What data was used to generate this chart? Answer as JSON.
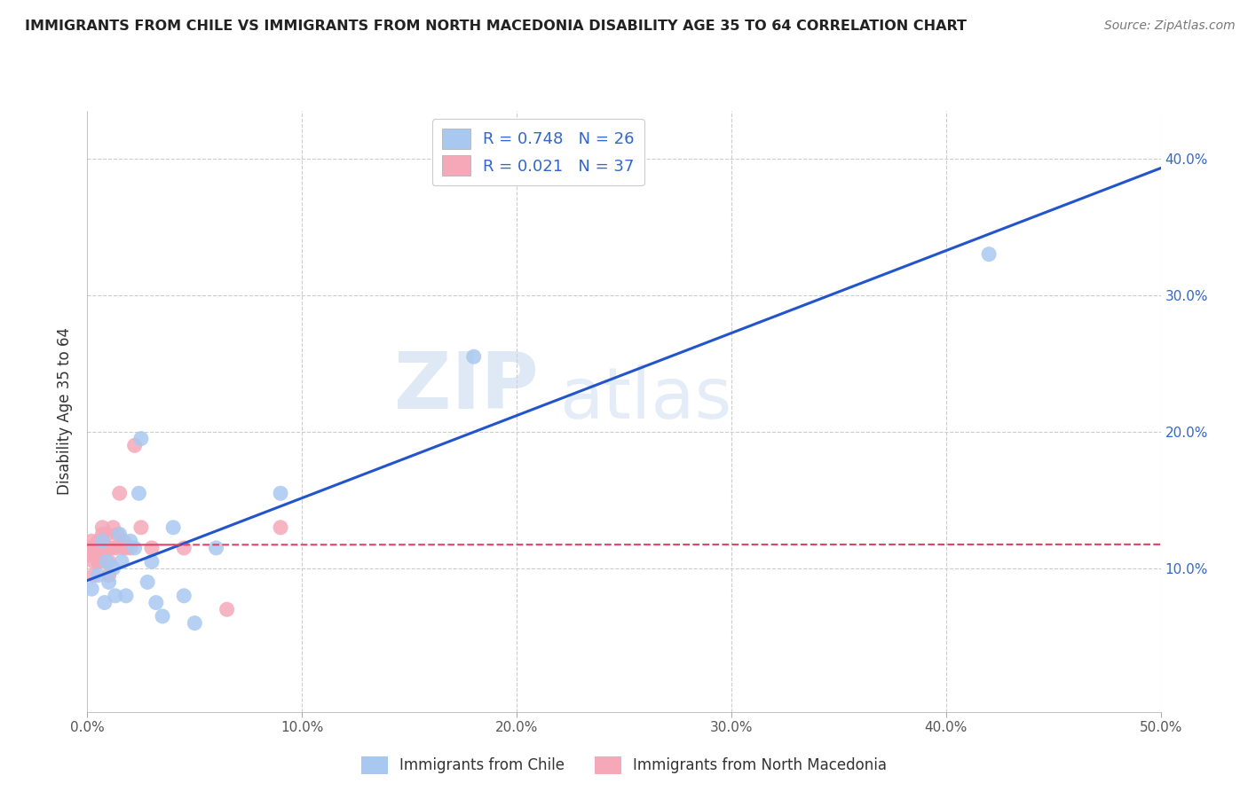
{
  "title": "IMMIGRANTS FROM CHILE VS IMMIGRANTS FROM NORTH MACEDONIA DISABILITY AGE 35 TO 64 CORRELATION CHART",
  "source": "Source: ZipAtlas.com",
  "ylabel": "Disability Age 35 to 64",
  "xlim": [
    0.0,
    0.5
  ],
  "ylim": [
    -0.005,
    0.435
  ],
  "xticks": [
    0.0,
    0.1,
    0.2,
    0.3,
    0.4,
    0.5
  ],
  "yticks": [
    0.0,
    0.1,
    0.2,
    0.3,
    0.4
  ],
  "xtick_labels": [
    "0.0%",
    "10.0%",
    "20.0%",
    "30.0%",
    "40.0%",
    "50.0%"
  ],
  "ytick_labels_right": [
    "",
    "10.0%",
    "20.0%",
    "30.0%",
    "40.0%"
  ],
  "blue_R": 0.748,
  "blue_N": 26,
  "pink_R": 0.021,
  "pink_N": 37,
  "blue_color": "#A8C8F0",
  "pink_color": "#F4A8B8",
  "blue_line_color": "#2255CC",
  "pink_line_color": "#DD4466",
  "watermark_zip": "ZIP",
  "watermark_atlas": "atlas",
  "legend_label_blue": "Immigrants from Chile",
  "legend_label_pink": "Immigrants from North Macedonia",
  "blue_x": [
    0.002,
    0.005,
    0.007,
    0.008,
    0.009,
    0.01,
    0.012,
    0.013,
    0.015,
    0.016,
    0.018,
    0.02,
    0.022,
    0.024,
    0.025,
    0.028,
    0.03,
    0.032,
    0.035,
    0.04,
    0.045,
    0.05,
    0.06,
    0.09,
    0.18,
    0.42
  ],
  "blue_y": [
    0.085,
    0.095,
    0.12,
    0.075,
    0.105,
    0.09,
    0.1,
    0.08,
    0.125,
    0.105,
    0.08,
    0.12,
    0.115,
    0.155,
    0.195,
    0.09,
    0.105,
    0.075,
    0.065,
    0.13,
    0.08,
    0.06,
    0.115,
    0.155,
    0.255,
    0.33
  ],
  "pink_x": [
    0.001,
    0.001,
    0.002,
    0.002,
    0.003,
    0.003,
    0.003,
    0.004,
    0.004,
    0.005,
    0.005,
    0.005,
    0.006,
    0.006,
    0.007,
    0.007,
    0.008,
    0.008,
    0.009,
    0.01,
    0.01,
    0.01,
    0.011,
    0.012,
    0.013,
    0.014,
    0.015,
    0.016,
    0.017,
    0.018,
    0.02,
    0.022,
    0.025,
    0.03,
    0.045,
    0.065,
    0.09
  ],
  "pink_y": [
    0.115,
    0.11,
    0.12,
    0.115,
    0.115,
    0.105,
    0.095,
    0.115,
    0.11,
    0.12,
    0.115,
    0.105,
    0.115,
    0.105,
    0.13,
    0.125,
    0.115,
    0.115,
    0.125,
    0.115,
    0.105,
    0.095,
    0.115,
    0.13,
    0.115,
    0.125,
    0.155,
    0.115,
    0.12,
    0.115,
    0.115,
    0.19,
    0.13,
    0.115,
    0.115,
    0.07,
    0.13
  ],
  "background_color": "#FFFFFF",
  "grid_color": "#CCCCCC"
}
